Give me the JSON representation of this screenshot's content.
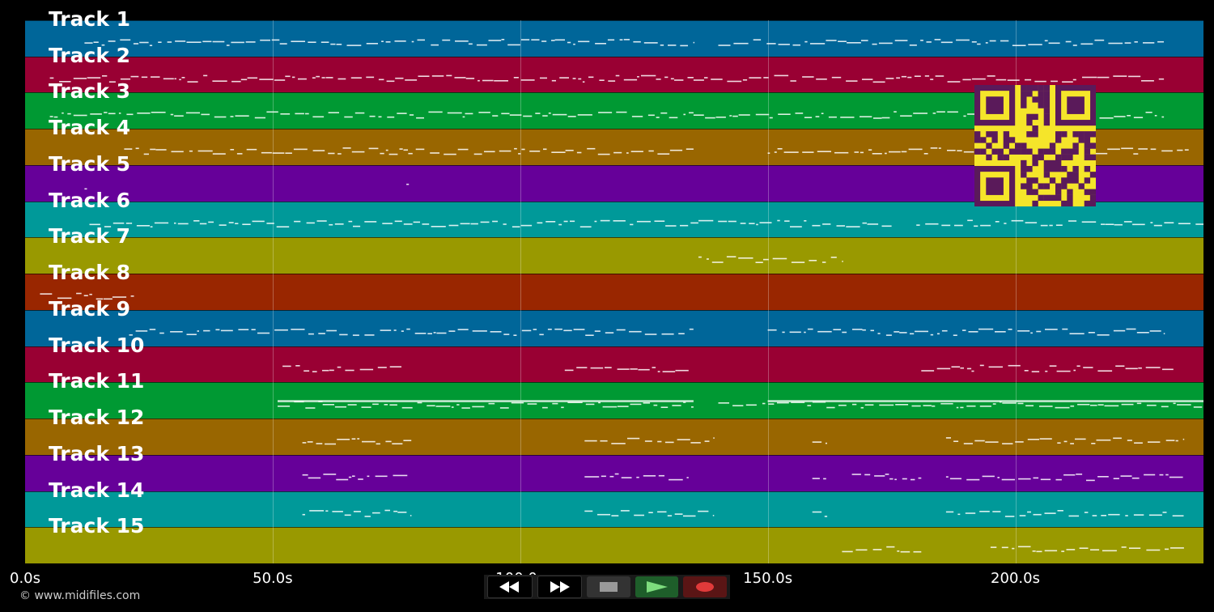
{
  "tracks": [
    {
      "label": "Track 1",
      "color": "#006699"
    },
    {
      "label": "Track 2",
      "color": "#990033"
    },
    {
      "label": "Track 3",
      "color": "#009933"
    },
    {
      "label": "Track 4",
      "color": "#996600"
    },
    {
      "label": "Track 5",
      "color": "#660099"
    },
    {
      "label": "Track 6",
      "color": "#009999"
    },
    {
      "label": "Track 7",
      "color": "#999900"
    },
    {
      "label": "Track 8",
      "color": "#992600"
    },
    {
      "label": "Track 9",
      "color": "#006699"
    },
    {
      "label": "Track 10",
      "color": "#990033"
    },
    {
      "label": "Track 11",
      "color": "#009933"
    },
    {
      "label": "Track 12",
      "color": "#996600"
    },
    {
      "label": "Track 13",
      "color": "#660099"
    },
    {
      "label": "Track 14",
      "color": "#009999"
    },
    {
      "label": "Track 15",
      "color": "#999900"
    }
  ],
  "timeline": {
    "max_seconds": 238,
    "ticks": [
      {
        "value": 0,
        "label": "0.0s"
      },
      {
        "value": 50,
        "label": "50.0s"
      },
      {
        "value": 100,
        "label": "100.0s"
      },
      {
        "value": 150,
        "label": "150.0s"
      },
      {
        "value": 200,
        "label": "200.0s"
      }
    ]
  },
  "controls": {
    "rewind_icon": "rewind-icon",
    "forward_icon": "fast-forward-icon",
    "stop_icon": "stop-icon",
    "play_icon": "play-icon",
    "record_icon": "record-icon"
  },
  "footer": {
    "copyright": "© www.midifiles.com"
  },
  "qr_icon": "qr-code-icon"
}
